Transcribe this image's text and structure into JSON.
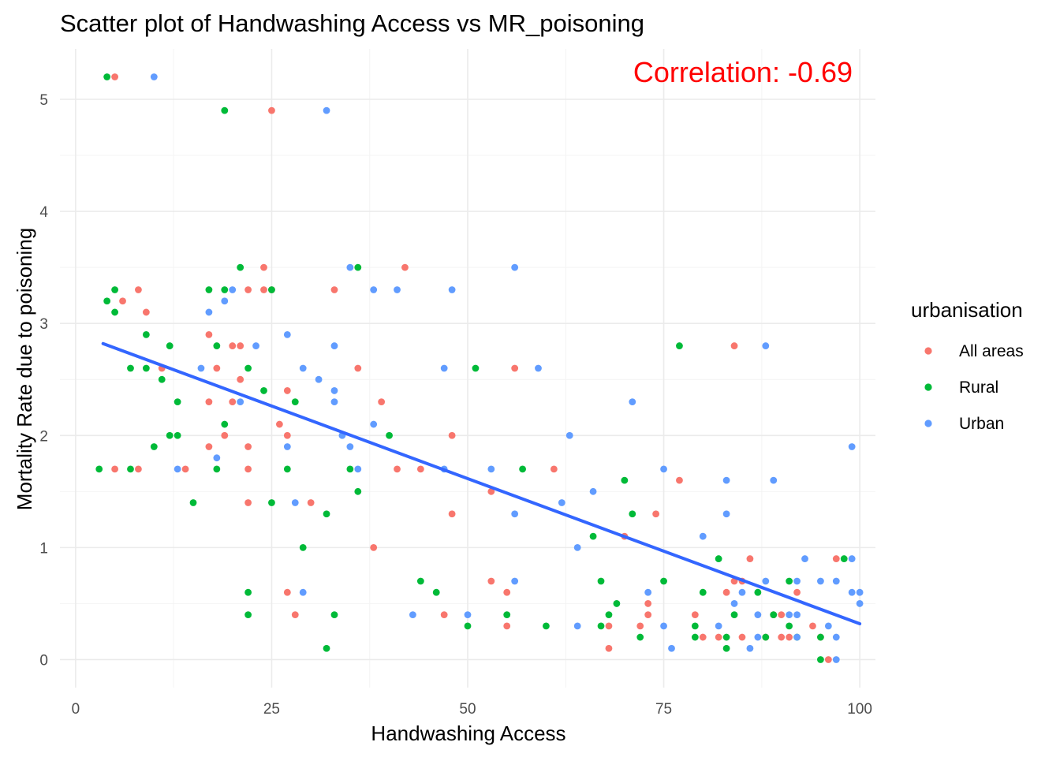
{
  "chart_data": {
    "type": "scatter",
    "title": "Scatter plot of Handwashing Access vs MR_poisoning",
    "xlabel": "Handwashing Access",
    "ylabel": "Mortality Rate due to poisoning",
    "xlim": [
      -2,
      102
    ],
    "ylim": [
      -0.25,
      5.45
    ],
    "x_ticks": [
      0,
      25,
      50,
      75,
      100
    ],
    "x_tick_labels": [
      "0",
      "25",
      "50",
      "75",
      "100"
    ],
    "y_ticks": [
      0,
      1,
      2,
      3,
      4,
      5
    ],
    "y_tick_labels": [
      "0",
      "1",
      "2",
      "3",
      "4",
      "5"
    ],
    "grid": true,
    "legend": {
      "title": "urbanisation",
      "position": "right"
    },
    "annotation": {
      "text": "Correlation:  -0.69",
      "color": "#FF0000"
    },
    "trend_line": {
      "type": "linear",
      "x": [
        3.5,
        100
      ],
      "y": [
        2.82,
        0.32
      ],
      "color": "#3366FF"
    },
    "series": [
      {
        "name": "All areas",
        "color": "#F8766D",
        "points": [
          [
            5,
            5.2
          ],
          [
            25,
            4.9
          ],
          [
            6,
            3.2
          ],
          [
            8,
            3.3
          ],
          [
            9,
            3.1
          ],
          [
            5,
            1.7
          ],
          [
            8,
            1.7
          ],
          [
            11,
            2.6
          ],
          [
            14,
            1.7
          ],
          [
            17,
            2.9
          ],
          [
            17,
            2.3
          ],
          [
            17,
            1.9
          ],
          [
            18,
            2.6
          ],
          [
            19,
            2.0
          ],
          [
            20,
            2.8
          ],
          [
            20,
            2.3
          ],
          [
            21,
            2.8
          ],
          [
            21,
            2.5
          ],
          [
            22,
            1.9
          ],
          [
            22,
            1.7
          ],
          [
            22,
            1.4
          ],
          [
            22,
            3.3
          ],
          [
            24,
            3.5
          ],
          [
            24,
            3.3
          ],
          [
            25,
            3.3
          ],
          [
            26,
            2.1
          ],
          [
            27,
            2.4
          ],
          [
            27,
            2.0
          ],
          [
            27,
            0.6
          ],
          [
            28,
            0.4
          ],
          [
            30,
            1.4
          ],
          [
            33,
            3.3
          ],
          [
            36,
            2.6
          ],
          [
            38,
            1.0
          ],
          [
            39,
            2.3
          ],
          [
            41,
            1.7
          ],
          [
            42,
            3.5
          ],
          [
            44,
            1.7
          ],
          [
            47,
            0.4
          ],
          [
            48,
            2.0
          ],
          [
            48,
            1.3
          ],
          [
            53,
            1.5
          ],
          [
            53,
            0.7
          ],
          [
            55,
            0.6
          ],
          [
            55,
            0.3
          ],
          [
            56,
            2.6
          ],
          [
            61,
            1.7
          ],
          [
            68,
            0.3
          ],
          [
            68,
            0.1
          ],
          [
            70,
            1.1
          ],
          [
            72,
            0.3
          ],
          [
            73,
            0.5
          ],
          [
            73,
            0.4
          ],
          [
            74,
            1.3
          ],
          [
            77,
            1.6
          ],
          [
            79,
            0.4
          ],
          [
            80,
            0.2
          ],
          [
            82,
            0.2
          ],
          [
            83,
            0.6
          ],
          [
            84,
            2.8
          ],
          [
            84,
            0.7
          ],
          [
            85,
            0.2
          ],
          [
            86,
            0.9
          ],
          [
            88,
            0.2
          ],
          [
            89,
            0.4
          ],
          [
            90,
            0.4
          ],
          [
            90,
            0.2
          ],
          [
            91,
            0.2
          ],
          [
            92,
            0.6
          ],
          [
            94,
            0.3
          ],
          [
            95,
            0.2
          ],
          [
            96,
            0.0
          ],
          [
            97,
            0.9
          ],
          [
            85,
            0.7
          ]
        ]
      },
      {
        "name": "Rural",
        "color": "#00BA38",
        "points": [
          [
            4,
            5.2
          ],
          [
            19,
            4.9
          ],
          [
            4,
            3.2
          ],
          [
            5,
            3.3
          ],
          [
            5,
            3.1
          ],
          [
            3,
            1.7
          ],
          [
            7,
            1.7
          ],
          [
            7,
            2.6
          ],
          [
            9,
            2.9
          ],
          [
            9,
            2.6
          ],
          [
            10,
            1.9
          ],
          [
            11,
            2.5
          ],
          [
            12,
            2.8
          ],
          [
            12,
            2.0
          ],
          [
            13,
            2.3
          ],
          [
            13,
            2.0
          ],
          [
            15,
            1.4
          ],
          [
            17,
            3.3
          ],
          [
            18,
            2.8
          ],
          [
            18,
            1.7
          ],
          [
            19,
            3.3
          ],
          [
            19,
            2.1
          ],
          [
            21,
            3.5
          ],
          [
            22,
            2.6
          ],
          [
            22,
            0.6
          ],
          [
            22,
            0.4
          ],
          [
            24,
            2.4
          ],
          [
            25,
            3.3
          ],
          [
            25,
            1.4
          ],
          [
            27,
            1.7
          ],
          [
            28,
            2.3
          ],
          [
            29,
            1.0
          ],
          [
            32,
            1.3
          ],
          [
            32,
            0.1
          ],
          [
            33,
            0.4
          ],
          [
            35,
            1.7
          ],
          [
            36,
            3.5
          ],
          [
            36,
            1.5
          ],
          [
            40,
            2.0
          ],
          [
            44,
            0.7
          ],
          [
            46,
            0.6
          ],
          [
            50,
            0.3
          ],
          [
            51,
            2.6
          ],
          [
            55,
            0.4
          ],
          [
            57,
            1.7
          ],
          [
            60,
            0.3
          ],
          [
            66,
            1.1
          ],
          [
            67,
            0.7
          ],
          [
            67,
            0.3
          ],
          [
            68,
            0.4
          ],
          [
            69,
            0.5
          ],
          [
            70,
            1.6
          ],
          [
            71,
            1.3
          ],
          [
            72,
            0.2
          ],
          [
            75,
            0.7
          ],
          [
            77,
            2.8
          ],
          [
            79,
            0.3
          ],
          [
            79,
            0.2
          ],
          [
            80,
            0.6
          ],
          [
            82,
            0.9
          ],
          [
            83,
            0.2
          ],
          [
            83,
            0.1
          ],
          [
            84,
            0.4
          ],
          [
            87,
            0.6
          ],
          [
            88,
            0.2
          ],
          [
            89,
            0.4
          ],
          [
            91,
            0.7
          ],
          [
            91,
            0.3
          ],
          [
            92,
            0.2
          ],
          [
            95,
            0.2
          ],
          [
            95,
            0.0
          ],
          [
            98,
            0.9
          ]
        ]
      },
      {
        "name": "Urban",
        "color": "#619CFF",
        "points": [
          [
            10,
            5.2
          ],
          [
            32,
            4.9
          ],
          [
            13,
            1.7
          ],
          [
            16,
            2.6
          ],
          [
            17,
            3.1
          ],
          [
            18,
            1.8
          ],
          [
            19,
            3.2
          ],
          [
            20,
            3.3
          ],
          [
            21,
            2.3
          ],
          [
            23,
            2.8
          ],
          [
            27,
            2.9
          ],
          [
            27,
            1.9
          ],
          [
            28,
            1.4
          ],
          [
            29,
            2.6
          ],
          [
            29,
            0.6
          ],
          [
            31,
            2.5
          ],
          [
            33,
            2.8
          ],
          [
            33,
            2.4
          ],
          [
            33,
            2.3
          ],
          [
            34,
            2.0
          ],
          [
            35,
            3.5
          ],
          [
            35,
            1.9
          ],
          [
            36,
            1.7
          ],
          [
            38,
            3.3
          ],
          [
            38,
            2.1
          ],
          [
            41,
            3.3
          ],
          [
            43,
            0.4
          ],
          [
            47,
            2.6
          ],
          [
            47,
            1.7
          ],
          [
            48,
            3.3
          ],
          [
            50,
            0.4
          ],
          [
            53,
            1.7
          ],
          [
            56,
            3.5
          ],
          [
            56,
            1.3
          ],
          [
            56,
            0.7
          ],
          [
            59,
            2.6
          ],
          [
            62,
            1.4
          ],
          [
            63,
            2.0
          ],
          [
            64,
            1.0
          ],
          [
            64,
            0.3
          ],
          [
            66,
            1.5
          ],
          [
            71,
            2.3
          ],
          [
            73,
            0.6
          ],
          [
            75,
            1.7
          ],
          [
            75,
            0.3
          ],
          [
            76,
            0.1
          ],
          [
            80,
            1.1
          ],
          [
            82,
            0.3
          ],
          [
            83,
            1.6
          ],
          [
            83,
            1.3
          ],
          [
            84,
            0.5
          ],
          [
            85,
            0.6
          ],
          [
            86,
            0.1
          ],
          [
            87,
            0.4
          ],
          [
            87,
            0.2
          ],
          [
            88,
            2.8
          ],
          [
            88,
            0.7
          ],
          [
            89,
            1.6
          ],
          [
            91,
            0.4
          ],
          [
            92,
            0.7
          ],
          [
            92,
            0.4
          ],
          [
            92,
            0.2
          ],
          [
            93,
            0.9
          ],
          [
            95,
            0.7
          ],
          [
            96,
            0.3
          ],
          [
            97,
            0.7
          ],
          [
            97,
            0.2
          ],
          [
            97,
            0.0
          ],
          [
            99,
            1.9
          ],
          [
            99,
            0.9
          ],
          [
            99,
            0.6
          ],
          [
            100,
            0.6
          ],
          [
            100,
            0.5
          ]
        ]
      }
    ]
  }
}
